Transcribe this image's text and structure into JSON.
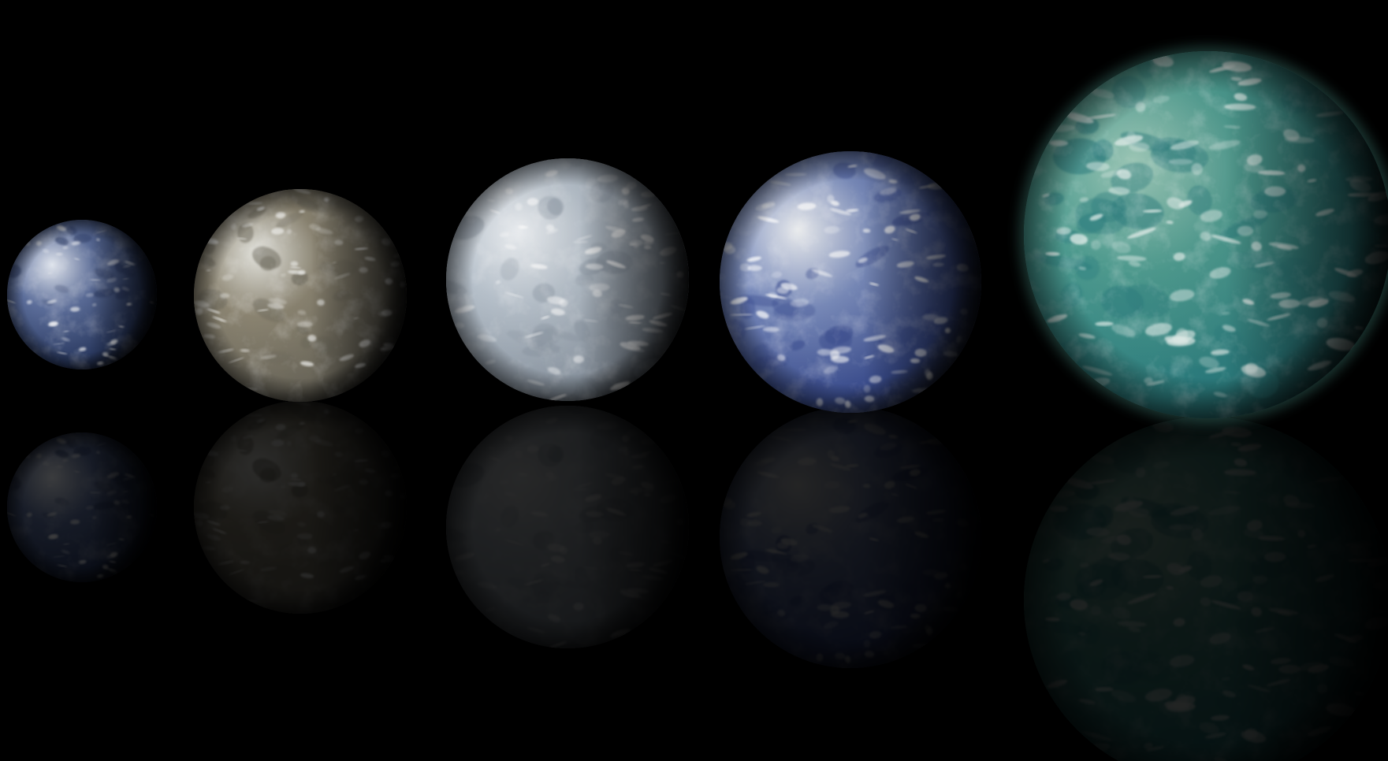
{
  "scene": {
    "background": "#000000",
    "planets": [
      {
        "name": "earth",
        "palette": {
          "base": "#2d3d66",
          "mid": "#5d6f9c",
          "light": "#e6ebf3",
          "cloud": "#ffffff",
          "shadow": "#05060a"
        }
      },
      {
        "name": "tan-planet",
        "palette": {
          "base": "#6e6a5d",
          "mid": "#8d8673",
          "light": "#e9e9e3",
          "cloud": "#f5f5f2",
          "shadow": "#0d0d0b"
        }
      },
      {
        "name": "ice-planet",
        "palette": {
          "base": "#8f9aa6",
          "mid": "#b8c2cc",
          "light": "#eef1f4",
          "cloud": "#ffffff",
          "shadow": "#2b2f34"
        }
      },
      {
        "name": "ocean-cloud-planet",
        "palette": {
          "base": "#3c4f92",
          "mid": "#7b8dbd",
          "light": "#eef0f2",
          "cloud": "#ffffff",
          "shadow": "#17191d"
        }
      },
      {
        "name": "teal-ocean-planet",
        "palette": {
          "base": "#2d7f80",
          "mid": "#4f9c90",
          "light": "#9fcab9",
          "cloud": "#e6f2ee",
          "shadow": "#0a2224"
        }
      }
    ]
  }
}
